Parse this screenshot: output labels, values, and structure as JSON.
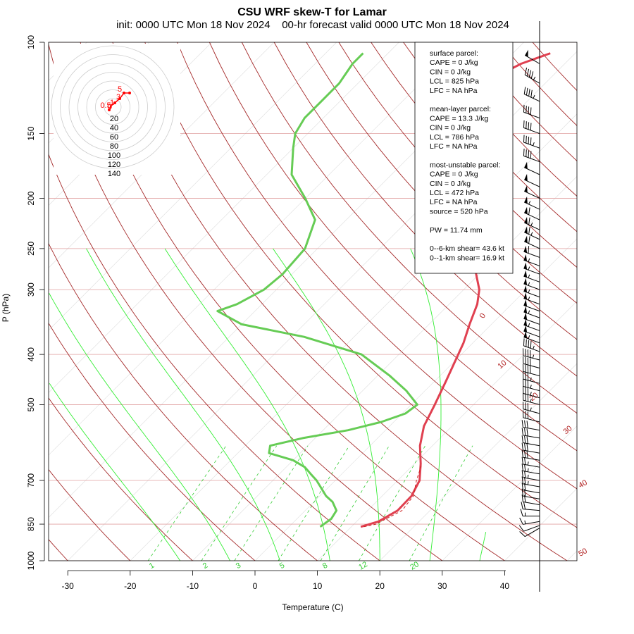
{
  "title": "CSU WRF skew-T for Lamar",
  "subtitle": "init: 0000 UTC Mon 18 Nov 2024    00-hr forecast valid 0000 UTC Mon 18 Nov 2024",
  "chart_data": {
    "type": "line",
    "xlabel": "Temperature (C)",
    "ylabel": "P (hPa)",
    "xlim": [
      -33,
      43
    ],
    "ylim": [
      1000,
      100
    ],
    "y_scale": "log",
    "x_ticks": [
      "-30",
      "-20",
      "-10",
      "0",
      "10",
      "20",
      "30",
      "40"
    ],
    "y_ticks": [
      "100",
      "150",
      "200",
      "250",
      "300",
      "400",
      "500",
      "700",
      "850",
      "1000"
    ],
    "dry_adiabat_labels": [
      "0",
      "10",
      "20",
      "30",
      "40",
      "50"
    ],
    "mixing_ratio_labels": [
      "1",
      "2",
      "3",
      "5",
      "8",
      "12",
      "20"
    ],
    "series": [
      {
        "color": "#e04050",
        "values": [
          [
            860,
            11.5
          ],
          [
            840,
            13.5
          ],
          [
            800,
            14.8
          ],
          [
            750,
            14.7
          ],
          [
            700,
            13.5
          ],
          [
            650,
            11.0
          ],
          [
            600,
            8.0
          ],
          [
            550,
            5.5
          ],
          [
            500,
            3.8
          ],
          [
            450,
            1.8
          ],
          [
            400,
            -0.5
          ],
          [
            380,
            -1.5
          ],
          [
            350,
            -3.5
          ],
          [
            320,
            -5.5
          ],
          [
            300,
            -7.5
          ],
          [
            280,
            -10.5
          ],
          [
            250,
            -15.5
          ],
          [
            220,
            -21.0
          ],
          [
            200,
            -25.5
          ],
          [
            180,
            -30.0
          ],
          [
            160,
            -35.5
          ],
          [
            150,
            -38.0
          ],
          [
            140,
            -40.0
          ],
          [
            130,
            -40.5
          ],
          [
            120,
            -40.0
          ],
          [
            110,
            -37.0
          ],
          [
            105,
            -34.0
          ]
        ]
      },
      {
        "color": "#66cc55",
        "values": [
          [
            860,
            5.0
          ],
          [
            830,
            5.5
          ],
          [
            800,
            5.0
          ],
          [
            770,
            3.0
          ],
          [
            750,
            1.0
          ],
          [
            700,
            -3.0
          ],
          [
            680,
            -5.0
          ],
          [
            660,
            -7.0
          ],
          [
            640,
            -10.0
          ],
          [
            620,
            -15.0
          ],
          [
            600,
            -16.0
          ],
          [
            580,
            -12.0
          ],
          [
            560,
            -6.0
          ],
          [
            540,
            -2.0
          ],
          [
            520,
            0.5
          ],
          [
            500,
            1.0
          ],
          [
            470,
            -3.0
          ],
          [
            440,
            -8.0
          ],
          [
            400,
            -16.0
          ],
          [
            370,
            -28.0
          ],
          [
            350,
            -40.0
          ],
          [
            330,
            -46.0
          ],
          [
            320,
            -44.0
          ],
          [
            300,
            -42.0
          ],
          [
            280,
            -41.5
          ],
          [
            250,
            -42.0
          ],
          [
            220,
            -45.0
          ],
          [
            200,
            -50.0
          ],
          [
            180,
            -56.0
          ],
          [
            160,
            -60.0
          ],
          [
            150,
            -62.0
          ],
          [
            140,
            -63.0
          ],
          [
            130,
            -63.0
          ],
          [
            120,
            -63.0
          ],
          [
            110,
            -64.0
          ],
          [
            105,
            -64.0
          ]
        ]
      }
    ],
    "parcel_trace": [
      [
        860,
        12.0
      ],
      [
        850,
        13.5
      ],
      [
        800,
        15.5
      ],
      [
        750,
        15.0
      ],
      [
        700,
        13.0
      ],
      [
        650,
        11.2
      ]
    ],
    "hodograph": {
      "range_labels": [
        "20",
        "40",
        "60",
        "80",
        "100",
        "120",
        "140"
      ],
      "height_labels": [
        "5",
        "3",
        "1",
        "0",
        "0.5"
      ]
    },
    "wind_barbs": [
      {
        "p": 110,
        "speed": 50,
        "dir": 300
      },
      {
        "p": 120,
        "speed": 45,
        "dir": 300
      },
      {
        "p": 130,
        "speed": 45,
        "dir": 295
      },
      {
        "p": 140,
        "speed": 40,
        "dir": 290
      },
      {
        "p": 150,
        "speed": 40,
        "dir": 290
      },
      {
        "p": 160,
        "speed": 45,
        "dir": 290
      },
      {
        "p": 170,
        "speed": 40,
        "dir": 290
      },
      {
        "p": 180,
        "speed": 50,
        "dir": 295
      },
      {
        "p": 190,
        "speed": 50,
        "dir": 295
      },
      {
        "p": 200,
        "speed": 50,
        "dir": 295
      },
      {
        "p": 210,
        "speed": 55,
        "dir": 295
      },
      {
        "p": 220,
        "speed": 60,
        "dir": 295
      },
      {
        "p": 230,
        "speed": 65,
        "dir": 295
      },
      {
        "p": 240,
        "speed": 65,
        "dir": 295
      },
      {
        "p": 250,
        "speed": 60,
        "dir": 295
      },
      {
        "p": 260,
        "speed": 60,
        "dir": 290
      },
      {
        "p": 270,
        "speed": 55,
        "dir": 290
      },
      {
        "p": 280,
        "speed": 55,
        "dir": 290
      },
      {
        "p": 290,
        "speed": 55,
        "dir": 290
      },
      {
        "p": 300,
        "speed": 55,
        "dir": 290
      },
      {
        "p": 310,
        "speed": 55,
        "dir": 290
      },
      {
        "p": 320,
        "speed": 55,
        "dir": 290
      },
      {
        "p": 330,
        "speed": 50,
        "dir": 290
      },
      {
        "p": 340,
        "speed": 55,
        "dir": 290
      },
      {
        "p": 350,
        "speed": 50,
        "dir": 290
      },
      {
        "p": 360,
        "speed": 55,
        "dir": 290
      },
      {
        "p": 370,
        "speed": 50,
        "dir": 290
      },
      {
        "p": 380,
        "speed": 55,
        "dir": 290
      },
      {
        "p": 395,
        "speed": 45,
        "dir": 290
      },
      {
        "p": 410,
        "speed": 45,
        "dir": 285
      },
      {
        "p": 425,
        "speed": 40,
        "dir": 285
      },
      {
        "p": 440,
        "speed": 40,
        "dir": 285
      },
      {
        "p": 455,
        "speed": 35,
        "dir": 285
      },
      {
        "p": 470,
        "speed": 35,
        "dir": 285
      },
      {
        "p": 485,
        "speed": 35,
        "dir": 285
      },
      {
        "p": 500,
        "speed": 35,
        "dir": 285
      },
      {
        "p": 520,
        "speed": 35,
        "dir": 285
      },
      {
        "p": 540,
        "speed": 30,
        "dir": 285
      },
      {
        "p": 560,
        "speed": 30,
        "dir": 280
      },
      {
        "p": 580,
        "speed": 30,
        "dir": 280
      },
      {
        "p": 600,
        "speed": 30,
        "dir": 280
      },
      {
        "p": 620,
        "speed": 30,
        "dir": 280
      },
      {
        "p": 640,
        "speed": 30,
        "dir": 280
      },
      {
        "p": 660,
        "speed": 25,
        "dir": 280
      },
      {
        "p": 680,
        "speed": 25,
        "dir": 280
      },
      {
        "p": 700,
        "speed": 25,
        "dir": 280
      },
      {
        "p": 720,
        "speed": 25,
        "dir": 280
      },
      {
        "p": 740,
        "speed": 20,
        "dir": 280
      },
      {
        "p": 760,
        "speed": 20,
        "dir": 280
      },
      {
        "p": 780,
        "speed": 20,
        "dir": 280
      },
      {
        "p": 800,
        "speed": 20,
        "dir": 275
      },
      {
        "p": 820,
        "speed": 15,
        "dir": 270
      },
      {
        "p": 840,
        "speed": 15,
        "dir": 260
      },
      {
        "p": 855,
        "speed": 10,
        "dir": 250
      },
      {
        "p": 865,
        "speed": 10,
        "dir": 240
      }
    ]
  },
  "info_box": [
    "surface parcel:",
    "CAPE = 0 J/kg",
    "CIN = 0 J/kg",
    "LCL = 825 hPa",
    "LFC = NA hPa",
    "",
    "mean-layer parcel:",
    "CAPE = 13.3 J/kg",
    "CIN = 0 J/kg",
    "LCL = 786 hPa",
    "LFC = NA hPa",
    "",
    "most-unstable parcel:",
    "CAPE = 0 J/kg",
    "CIN = 0 J/kg",
    "LCL = 472 hPa",
    "LFC = NA hPa",
    "source = 520 hPa",
    "",
    "PW =  11.74 mm",
    "",
    "0--6-km shear= 43.6 kt",
    "0--1-km shear= 16.9 kt"
  ]
}
